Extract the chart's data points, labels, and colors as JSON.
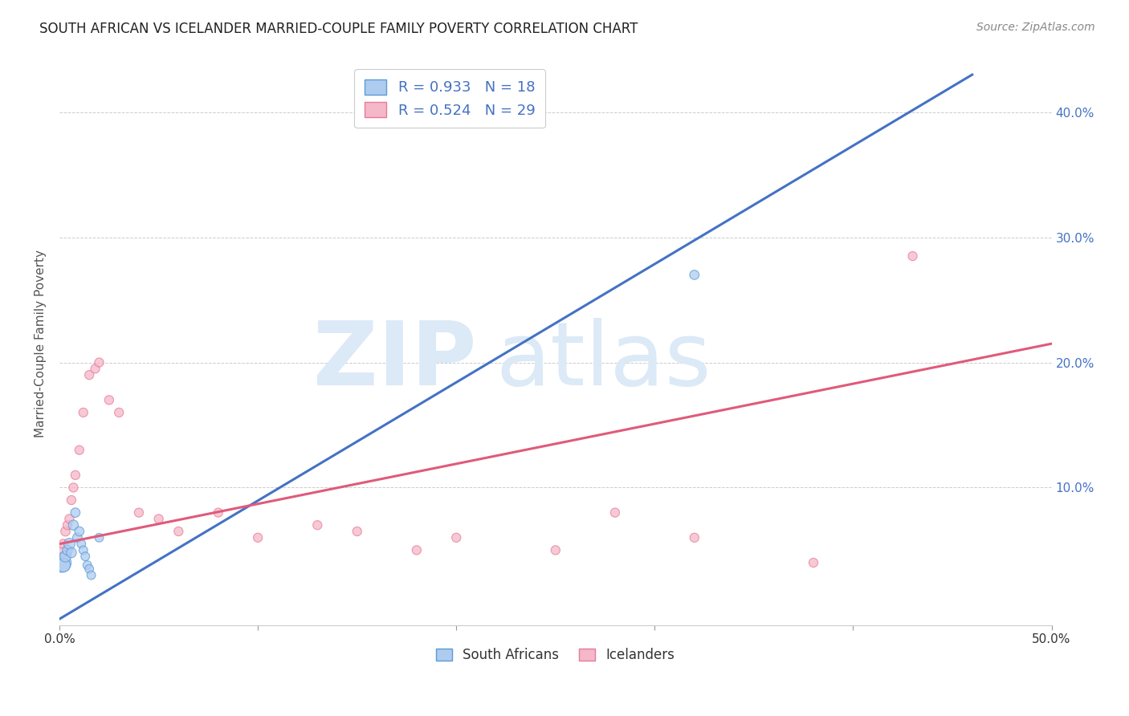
{
  "title": "SOUTH AFRICAN VS ICELANDER MARRIED-COUPLE FAMILY POVERTY CORRELATION CHART",
  "source": "Source: ZipAtlas.com",
  "ylabel": "Married-Couple Family Poverty",
  "xlim": [
    0.0,
    0.5
  ],
  "ylim": [
    -0.01,
    0.44
  ],
  "xticks": [
    0.0,
    0.1,
    0.2,
    0.3,
    0.4,
    0.5
  ],
  "yticks": [
    0.1,
    0.2,
    0.3,
    0.4
  ],
  "ytick_labels": [
    "10.0%",
    "20.0%",
    "30.0%",
    "40.0%"
  ],
  "xtick_labels": [
    "0.0%",
    "",
    "",
    "",
    "",
    "50.0%"
  ],
  "south_africans_x": [
    0.001,
    0.002,
    0.003,
    0.004,
    0.005,
    0.006,
    0.007,
    0.008,
    0.009,
    0.01,
    0.011,
    0.012,
    0.013,
    0.014,
    0.015,
    0.016,
    0.02,
    0.32
  ],
  "south_africans_y": [
    0.04,
    0.038,
    0.045,
    0.05,
    0.055,
    0.048,
    0.07,
    0.08,
    0.06,
    0.065,
    0.055,
    0.05,
    0.045,
    0.038,
    0.035,
    0.03,
    0.06,
    0.27
  ],
  "south_africans_size": [
    300,
    150,
    100,
    80,
    100,
    80,
    80,
    70,
    70,
    70,
    60,
    60,
    60,
    60,
    60,
    60,
    60,
    70
  ],
  "icelanders_x": [
    0.001,
    0.002,
    0.003,
    0.004,
    0.005,
    0.006,
    0.007,
    0.008,
    0.01,
    0.012,
    0.015,
    0.018,
    0.02,
    0.025,
    0.03,
    0.04,
    0.05,
    0.06,
    0.08,
    0.1,
    0.13,
    0.15,
    0.18,
    0.2,
    0.25,
    0.28,
    0.32,
    0.38,
    0.43
  ],
  "icelanders_y": [
    0.048,
    0.055,
    0.065,
    0.07,
    0.075,
    0.09,
    0.1,
    0.11,
    0.13,
    0.16,
    0.19,
    0.195,
    0.2,
    0.17,
    0.16,
    0.08,
    0.075,
    0.065,
    0.08,
    0.06,
    0.07,
    0.065,
    0.05,
    0.06,
    0.05,
    0.08,
    0.06,
    0.04,
    0.285
  ],
  "icelanders_size": [
    80,
    70,
    70,
    65,
    65,
    65,
    65,
    65,
    65,
    65,
    65,
    65,
    65,
    65,
    65,
    65,
    65,
    65,
    65,
    65,
    65,
    65,
    65,
    65,
    65,
    65,
    65,
    65,
    65
  ],
  "sa_color": "#aecbf0",
  "sa_edge_color": "#5b9bd5",
  "sa_line_color": "#4472c4",
  "ice_color": "#f4b8c8",
  "ice_edge_color": "#e8799a",
  "ice_line_color": "#e05a7a",
  "sa_R": 0.933,
  "sa_N": 18,
  "ice_R": 0.524,
  "ice_N": 29,
  "legend_text_color": "#4472c4",
  "watermark_zip": "ZIP",
  "watermark_atlas": "atlas",
  "watermark_color": "#dce9f7",
  "sa_line_x": [
    0.0,
    0.46
  ],
  "sa_line_y": [
    -0.005,
    0.43
  ],
  "ice_line_x": [
    0.0,
    0.5
  ],
  "ice_line_y": [
    0.055,
    0.215
  ]
}
